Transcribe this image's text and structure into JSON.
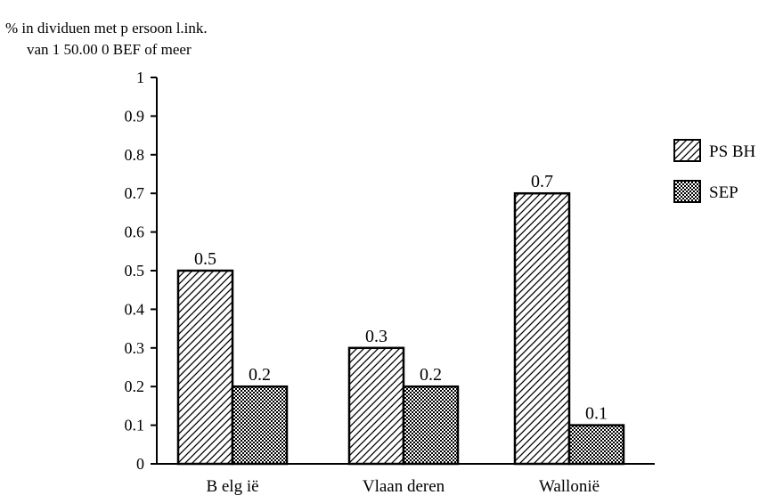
{
  "chart_data": {
    "type": "bar",
    "ylabel_line1": "% in dividuen met p ersoon l.ink.",
    "ylabel_line2": "van 1 50.00 0 BEF of meer",
    "categories": [
      "B elg ië",
      "Vlaan deren",
      "Wallonië"
    ],
    "series": [
      {
        "name": "PS BH",
        "values": [
          0.5,
          0.3,
          0.7
        ],
        "pattern": "diagonal-hatch"
      },
      {
        "name": "SEP",
        "values": [
          0.2,
          0.2,
          0.1
        ],
        "pattern": "checker"
      }
    ],
    "data_labels": [
      [
        "0.5",
        "0.3",
        "0.7"
      ],
      [
        "0.2",
        "0.2",
        "0.1"
      ]
    ],
    "yticks": [
      "0",
      "0.1",
      "0.2",
      "0.3",
      "0.4",
      "0.5",
      "0.6",
      "0.7",
      "0.8",
      "0.9",
      "1"
    ],
    "ylim": [
      0,
      1
    ],
    "legend_position": "right",
    "grid": false,
    "colors": {
      "stroke": "#000000",
      "fill": "#ffffff"
    }
  }
}
